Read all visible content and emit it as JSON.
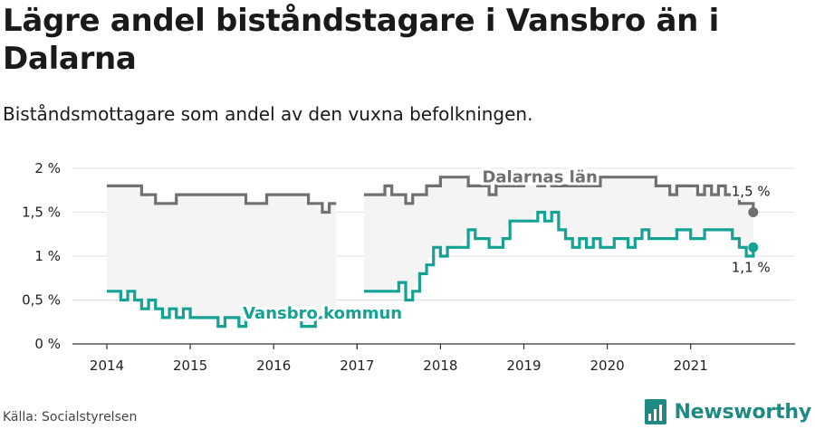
{
  "title": "Lägre andel biståndstagare i Vansbro än i Dalarna",
  "subtitle": "Biståndsmottagare som andel av den vuxna befolkningen.",
  "source": "Källa: Socialstyrelsen",
  "brand": "Newsworthy",
  "icons": {
    "brand": "newsworthy-logo-icon"
  },
  "colors": {
    "county": "#707070",
    "municipality": "#13a294",
    "band": "#f4f4f4",
    "brand": "#1f8a84"
  },
  "chart_data": {
    "type": "line",
    "x_ticks": [
      "2014",
      "2015",
      "2016",
      "2017",
      "2018",
      "2019",
      "2020",
      "2021"
    ],
    "y_ticks": [
      "0 %",
      "0,5 %",
      "1 %",
      "1,5 %",
      "2 %"
    ],
    "ylim": [
      0,
      2
    ],
    "xlim": [
      2014,
      2022
    ],
    "grid": true,
    "legend": "inline labels",
    "series": [
      {
        "name": "Dalarnas län",
        "end_label": "1,5 %",
        "points": [
          [
            "2014-01",
            1.8
          ],
          [
            "2014-02",
            1.8
          ],
          [
            "2014-03",
            1.8
          ],
          [
            "2014-04",
            1.8
          ],
          [
            "2014-05",
            1.8
          ],
          [
            "2014-06",
            1.7
          ],
          [
            "2014-07",
            1.7
          ],
          [
            "2014-08",
            1.6
          ],
          [
            "2014-09",
            1.6
          ],
          [
            "2014-10",
            1.6
          ],
          [
            "2014-11",
            1.7
          ],
          [
            "2014-12",
            1.7
          ],
          [
            "2015-01",
            1.7
          ],
          [
            "2015-02",
            1.7
          ],
          [
            "2015-03",
            1.7
          ],
          [
            "2015-04",
            1.7
          ],
          [
            "2015-05",
            1.7
          ],
          [
            "2015-06",
            1.7
          ],
          [
            "2015-07",
            1.7
          ],
          [
            "2015-08",
            1.7
          ],
          [
            "2015-09",
            1.6
          ],
          [
            "2015-10",
            1.6
          ],
          [
            "2015-11",
            1.6
          ],
          [
            "2015-12",
            1.7
          ],
          [
            "2016-01",
            1.7
          ],
          [
            "2016-02",
            1.7
          ],
          [
            "2016-03",
            1.7
          ],
          [
            "2016-04",
            1.7
          ],
          [
            "2016-05",
            1.7
          ],
          [
            "2016-06",
            1.6
          ],
          [
            "2016-07",
            1.6
          ],
          [
            "2016-08",
            1.5
          ],
          [
            "2016-09",
            1.6
          ],
          [
            "2016-10",
            1.6
          ],
          [
            "2016-11",
            null
          ],
          [
            "2016-12",
            null
          ],
          [
            "2017-01",
            null
          ],
          [
            "2017-02",
            1.7
          ],
          [
            "2017-03",
            1.7
          ],
          [
            "2017-04",
            1.7
          ],
          [
            "2017-05",
            1.8
          ],
          [
            "2017-06",
            1.7
          ],
          [
            "2017-07",
            1.7
          ],
          [
            "2017-08",
            1.6
          ],
          [
            "2017-09",
            1.7
          ],
          [
            "2017-10",
            1.7
          ],
          [
            "2017-11",
            1.8
          ],
          [
            "2017-12",
            1.8
          ],
          [
            "2018-01",
            1.9
          ],
          [
            "2018-02",
            1.9
          ],
          [
            "2018-03",
            1.9
          ],
          [
            "2018-04",
            1.9
          ],
          [
            "2018-05",
            1.8
          ],
          [
            "2018-06",
            1.8
          ],
          [
            "2018-07",
            1.8
          ],
          [
            "2018-08",
            1.7
          ],
          [
            "2018-09",
            1.8
          ],
          [
            "2018-10",
            1.8
          ],
          [
            "2018-11",
            1.8
          ],
          [
            "2018-12",
            1.8
          ],
          [
            "2019-01",
            1.9
          ],
          [
            "2019-02",
            1.9
          ],
          [
            "2019-03",
            1.8
          ],
          [
            "2019-04",
            1.9
          ],
          [
            "2019-05",
            1.8
          ],
          [
            "2019-06",
            1.8
          ],
          [
            "2019-07",
            1.8
          ],
          [
            "2019-08",
            1.8
          ],
          [
            "2019-09",
            1.8
          ],
          [
            "2019-10",
            1.8
          ],
          [
            "2019-11",
            1.8
          ],
          [
            "2019-12",
            1.9
          ],
          [
            "2020-01",
            1.9
          ],
          [
            "2020-02",
            1.9
          ],
          [
            "2020-03",
            1.9
          ],
          [
            "2020-04",
            1.9
          ],
          [
            "2020-05",
            1.9
          ],
          [
            "2020-06",
            1.9
          ],
          [
            "2020-07",
            1.9
          ],
          [
            "2020-08",
            1.8
          ],
          [
            "2020-09",
            1.8
          ],
          [
            "2020-10",
            1.7
          ],
          [
            "2020-11",
            1.8
          ],
          [
            "2020-12",
            1.8
          ],
          [
            "2021-01",
            1.8
          ],
          [
            "2021-02",
            1.7
          ],
          [
            "2021-03",
            1.8
          ],
          [
            "2021-04",
            1.7
          ],
          [
            "2021-05",
            1.8
          ],
          [
            "2021-06",
            1.7
          ],
          [
            "2021-07",
            1.7
          ],
          [
            "2021-08",
            1.6
          ],
          [
            "2021-09",
            1.6
          ],
          [
            "2021-10",
            1.5
          ]
        ]
      },
      {
        "name": "Vansbro kommun",
        "end_label": "1,1 %",
        "points": [
          [
            "2014-01",
            0.6
          ],
          [
            "2014-02",
            0.6
          ],
          [
            "2014-03",
            0.5
          ],
          [
            "2014-04",
            0.6
          ],
          [
            "2014-05",
            0.5
          ],
          [
            "2014-06",
            0.4
          ],
          [
            "2014-07",
            0.5
          ],
          [
            "2014-08",
            0.4
          ],
          [
            "2014-09",
            0.3
          ],
          [
            "2014-10",
            0.4
          ],
          [
            "2014-11",
            0.3
          ],
          [
            "2014-12",
            0.4
          ],
          [
            "2015-01",
            0.3
          ],
          [
            "2015-02",
            0.3
          ],
          [
            "2015-03",
            0.3
          ],
          [
            "2015-04",
            0.3
          ],
          [
            "2015-05",
            0.2
          ],
          [
            "2015-06",
            0.3
          ],
          [
            "2015-07",
            0.3
          ],
          [
            "2015-08",
            0.2
          ],
          [
            "2015-09",
            0.3
          ],
          [
            "2015-10",
            0.3
          ],
          [
            "2015-11",
            0.3
          ],
          [
            "2015-12",
            0.3
          ],
          [
            "2016-01",
            0.3
          ],
          [
            "2016-02",
            0.3
          ],
          [
            "2016-03",
            0.3
          ],
          [
            "2016-04",
            0.3
          ],
          [
            "2016-05",
            0.2
          ],
          [
            "2016-06",
            0.2
          ],
          [
            "2016-07",
            0.3
          ],
          [
            "2016-08",
            0.3
          ],
          [
            "2016-09",
            0.3
          ],
          [
            "2016-10",
            0.3
          ],
          [
            "2016-11",
            null
          ],
          [
            "2016-12",
            null
          ],
          [
            "2017-01",
            null
          ],
          [
            "2017-02",
            0.6
          ],
          [
            "2017-03",
            0.6
          ],
          [
            "2017-04",
            0.6
          ],
          [
            "2017-05",
            0.6
          ],
          [
            "2017-06",
            0.6
          ],
          [
            "2017-07",
            0.7
          ],
          [
            "2017-08",
            0.5
          ],
          [
            "2017-09",
            0.6
          ],
          [
            "2017-10",
            0.8
          ],
          [
            "2017-11",
            0.9
          ],
          [
            "2017-12",
            1.1
          ],
          [
            "2018-01",
            1.0
          ],
          [
            "2018-02",
            1.1
          ],
          [
            "2018-03",
            1.1
          ],
          [
            "2018-04",
            1.1
          ],
          [
            "2018-05",
            1.3
          ],
          [
            "2018-06",
            1.2
          ],
          [
            "2018-07",
            1.2
          ],
          [
            "2018-08",
            1.1
          ],
          [
            "2018-09",
            1.1
          ],
          [
            "2018-10",
            1.2
          ],
          [
            "2018-11",
            1.4
          ],
          [
            "2018-12",
            1.4
          ],
          [
            "2019-01",
            1.4
          ],
          [
            "2019-02",
            1.4
          ],
          [
            "2019-03",
            1.5
          ],
          [
            "2019-04",
            1.4
          ],
          [
            "2019-05",
            1.5
          ],
          [
            "2019-06",
            1.3
          ],
          [
            "2019-07",
            1.2
          ],
          [
            "2019-08",
            1.1
          ],
          [
            "2019-09",
            1.2
          ],
          [
            "2019-10",
            1.1
          ],
          [
            "2019-11",
            1.2
          ],
          [
            "2019-12",
            1.1
          ],
          [
            "2020-01",
            1.1
          ],
          [
            "2020-02",
            1.2
          ],
          [
            "2020-03",
            1.2
          ],
          [
            "2020-04",
            1.1
          ],
          [
            "2020-05",
            1.2
          ],
          [
            "2020-06",
            1.3
          ],
          [
            "2020-07",
            1.2
          ],
          [
            "2020-08",
            1.2
          ],
          [
            "2020-09",
            1.2
          ],
          [
            "2020-10",
            1.2
          ],
          [
            "2020-11",
            1.3
          ],
          [
            "2020-12",
            1.3
          ],
          [
            "2021-01",
            1.2
          ],
          [
            "2021-02",
            1.2
          ],
          [
            "2021-03",
            1.3
          ],
          [
            "2021-04",
            1.3
          ],
          [
            "2021-05",
            1.3
          ],
          [
            "2021-06",
            1.3
          ],
          [
            "2021-07",
            1.2
          ],
          [
            "2021-08",
            1.1
          ],
          [
            "2021-09",
            1.0
          ],
          [
            "2021-10",
            1.1
          ]
        ]
      }
    ]
  }
}
